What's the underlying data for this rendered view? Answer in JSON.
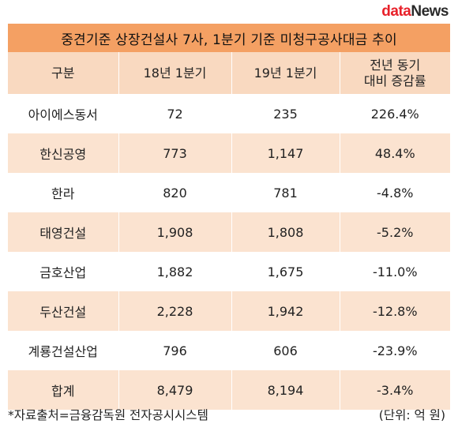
{
  "brand": {
    "part1": "data",
    "part2": "News"
  },
  "title": "중견기준 상장건설사 7사, 1분기 기준 미청구공사대금 추이",
  "header": {
    "col1": "구분",
    "col2": "18년 1분기",
    "col3": "19년 1분기",
    "col4_line1": "전년 동기",
    "col4_line2": "대비 증감률"
  },
  "rows": [
    {
      "name": "아이에스동서",
      "q18": "72",
      "q19": "235",
      "change": "226.4%"
    },
    {
      "name": "한신공영",
      "q18": "773",
      "q19": "1,147",
      "change": "48.4%"
    },
    {
      "name": "한라",
      "q18": "820",
      "q19": "781",
      "change": "-4.8%"
    },
    {
      "name": "태영건설",
      "q18": "1,908",
      "q19": "1,808",
      "change": "-5.2%"
    },
    {
      "name": "금호산업",
      "q18": "1,882",
      "q19": "1,675",
      "change": "-11.0%"
    },
    {
      "name": "두산건설",
      "q18": "2,228",
      "q19": "1,942",
      "change": "-12.8%"
    },
    {
      "name": "계룡건설산업",
      "q18": "796",
      "q19": "606",
      "change": "-23.9%"
    },
    {
      "name": "합계",
      "q18": "8,479",
      "q19": "8,194",
      "change": "-3.4%"
    }
  ],
  "footer": {
    "source": "*자료출처=금융감독원 전자공시시스템",
    "unit": "(단위: 억 원)"
  },
  "colors": {
    "title_bg": "#f4a063",
    "header_bg": "#f9d9c0",
    "stripe_bg": "#fbe3d0",
    "brand_red": "#e8212a"
  }
}
